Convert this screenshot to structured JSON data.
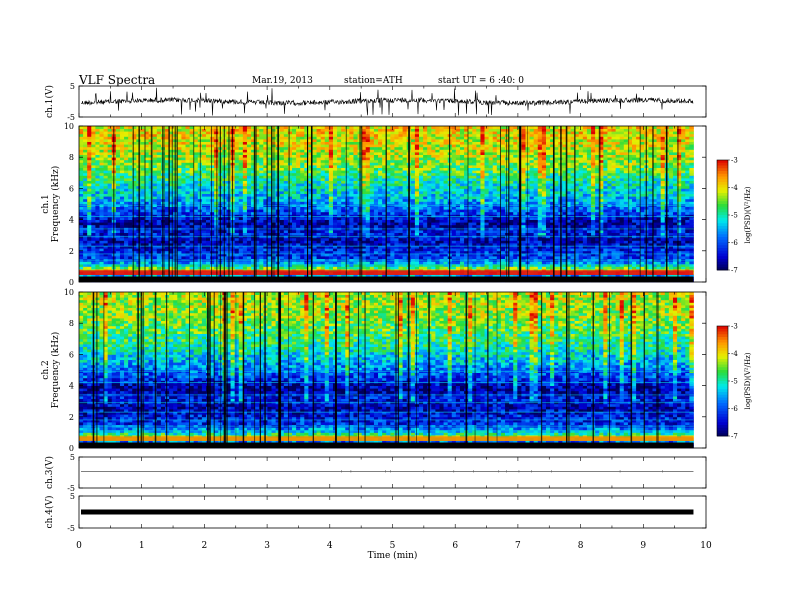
{
  "header": {
    "title": "VLF  Spectra",
    "date": "Mar.19, 2013",
    "station": "station=ATH",
    "start": "start  UT  =   6  :40: 0"
  },
  "chart_data": [
    {
      "type": "line",
      "panel": "ch1-waveform",
      "ylabel": "ch.1(V)",
      "ylim": [
        -5,
        5
      ],
      "yticks": [
        "5",
        "-5"
      ],
      "xlim": [
        0,
        10
      ],
      "baseline": 0,
      "grid": false
    },
    {
      "type": "heatmap",
      "panel": "ch1-spectrogram",
      "ylabel_channel": "ch.1",
      "ylabel": "Frequency  (kHz)",
      "ylim": [
        0,
        10
      ],
      "yticks": [
        "0",
        "2",
        "4",
        "6",
        "8",
        "10"
      ],
      "xlim": [
        0,
        10
      ],
      "data_end_min": 9.8,
      "colorbar": {
        "label": "log(PSD)(V²/Hz)",
        "range": [
          -7,
          -3
        ],
        "ticks": [
          "-3",
          "-4",
          "-5",
          "-6",
          "-7"
        ]
      },
      "log_psd_profile": [
        {
          "f": 0.3,
          "v": -7
        },
        {
          "f": 0.6,
          "v": -3.3
        },
        {
          "f": 1.0,
          "v": -5.0
        },
        {
          "f": 1.5,
          "v": -6.1
        },
        {
          "f": 2.0,
          "v": -6.2
        },
        {
          "f": 2.6,
          "v": -6.6
        },
        {
          "f": 3.2,
          "v": -6.3
        },
        {
          "f": 3.8,
          "v": -6.7
        },
        {
          "f": 4.5,
          "v": -6.0
        },
        {
          "f": 5.5,
          "v": -5.4
        },
        {
          "f": 6.5,
          "v": -5.0
        },
        {
          "f": 7.5,
          "v": -4.5
        },
        {
          "f": 8.5,
          "v": -4.2
        },
        {
          "f": 9.5,
          "v": -4.0
        }
      ]
    },
    {
      "type": "heatmap",
      "panel": "ch2-spectrogram",
      "ylabel_channel": "ch.2",
      "ylabel": "Frequency  (kHz)",
      "ylim": [
        0,
        10
      ],
      "yticks": [
        "0",
        "2",
        "4",
        "6",
        "8",
        "10"
      ],
      "xlim": [
        0,
        10
      ],
      "data_end_min": 9.8,
      "colorbar": {
        "label": "log(PSD)(V²/Hz)",
        "range": [
          -7,
          -3
        ],
        "ticks": [
          "-3",
          "-4",
          "-5",
          "-6",
          "-7"
        ]
      },
      "log_psd_profile": [
        {
          "f": 0.3,
          "v": -7
        },
        {
          "f": 0.6,
          "v": -4.0
        },
        {
          "f": 1.0,
          "v": -5.2
        },
        {
          "f": 1.5,
          "v": -6.2
        },
        {
          "f": 2.0,
          "v": -6.3
        },
        {
          "f": 2.6,
          "v": -6.6
        },
        {
          "f": 3.2,
          "v": -6.3
        },
        {
          "f": 3.8,
          "v": -6.8
        },
        {
          "f": 4.5,
          "v": -6.1
        },
        {
          "f": 5.5,
          "v": -5.5
        },
        {
          "f": 6.5,
          "v": -5.0
        },
        {
          "f": 7.5,
          "v": -4.7
        },
        {
          "f": 8.5,
          "v": -4.4
        },
        {
          "f": 9.5,
          "v": -4.3
        }
      ]
    },
    {
      "type": "line",
      "panel": "ch3-waveform",
      "ylabel": "ch.3(V)",
      "ylim": [
        -5,
        5
      ],
      "yticks": [
        "5",
        "-5"
      ],
      "xlim": [
        0,
        10
      ],
      "baseline": 0.3
    },
    {
      "type": "line",
      "panel": "ch4-waveform",
      "ylabel": "ch.4(V)",
      "ylim": [
        -5,
        5
      ],
      "yticks": [
        "5",
        "-5"
      ],
      "xlim": [
        0,
        10
      ],
      "baseline": 0,
      "xlabel": "Time  (min)",
      "xticks": [
        "0",
        "1",
        "2",
        "3",
        "4",
        "5",
        "6",
        "7",
        "8",
        "9",
        "10"
      ]
    }
  ]
}
